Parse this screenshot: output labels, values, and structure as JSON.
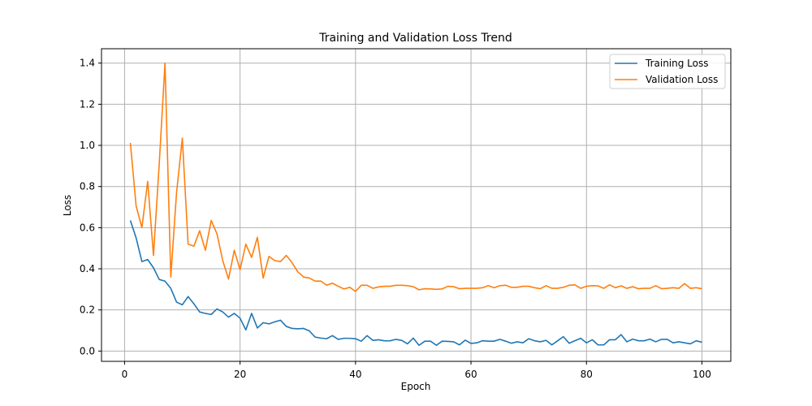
{
  "chart_data": {
    "type": "line",
    "title": "Training and Validation Loss Trend",
    "xlabel": "Epoch",
    "ylabel": "Loss",
    "xlim": [
      -4,
      105
    ],
    "ylim": [
      -0.05,
      1.47
    ],
    "xticks": [
      0,
      20,
      40,
      60,
      80,
      100
    ],
    "yticks": [
      0.0,
      0.2,
      0.4,
      0.6,
      0.8,
      1.0,
      1.2,
      1.4
    ],
    "xtick_labels": [
      "0",
      "20",
      "40",
      "60",
      "80",
      "100"
    ],
    "ytick_labels": [
      "0.0",
      "0.2",
      "0.4",
      "0.6",
      "0.8",
      "1.0",
      "1.2",
      "1.4"
    ],
    "grid": true,
    "legend_position": "top-right",
    "series": [
      {
        "name": "Training Loss",
        "color": "#1f77b4",
        "values": [
          0.635,
          0.55,
          0.435,
          0.445,
          0.405,
          0.348,
          0.34,
          0.305,
          0.238,
          0.225,
          0.265,
          0.23,
          0.19,
          0.183,
          0.178,
          0.205,
          0.19,
          0.165,
          0.183,
          0.16,
          0.103,
          0.183,
          0.112,
          0.138,
          0.132,
          0.142,
          0.15,
          0.12,
          0.11,
          0.108,
          0.11,
          0.098,
          0.068,
          0.063,
          0.06,
          0.075,
          0.057,
          0.062,
          0.062,
          0.06,
          0.048,
          0.075,
          0.052,
          0.055,
          0.05,
          0.05,
          0.057,
          0.052,
          0.035,
          0.063,
          0.028,
          0.048,
          0.048,
          0.028,
          0.048,
          0.047,
          0.045,
          0.03,
          0.053,
          0.037,
          0.04,
          0.05,
          0.048,
          0.048,
          0.057,
          0.048,
          0.038,
          0.045,
          0.04,
          0.06,
          0.05,
          0.045,
          0.052,
          0.03,
          0.05,
          0.07,
          0.038,
          0.05,
          0.062,
          0.04,
          0.055,
          0.03,
          0.03,
          0.055,
          0.055,
          0.08,
          0.045,
          0.058,
          0.05,
          0.05,
          0.058,
          0.045,
          0.057,
          0.057,
          0.04,
          0.045,
          0.04,
          0.035,
          0.05,
          0.043
        ]
      },
      {
        "name": "Validation Loss",
        "color": "#ff7f0e",
        "values": [
          1.012,
          0.705,
          0.6,
          0.825,
          0.465,
          0.91,
          1.4,
          0.36,
          0.77,
          1.035,
          0.52,
          0.51,
          0.585,
          0.49,
          0.635,
          0.57,
          0.44,
          0.35,
          0.49,
          0.395,
          0.52,
          0.455,
          0.553,
          0.355,
          0.46,
          0.44,
          0.435,
          0.465,
          0.43,
          0.385,
          0.36,
          0.355,
          0.34,
          0.34,
          0.32,
          0.33,
          0.315,
          0.302,
          0.31,
          0.29,
          0.32,
          0.32,
          0.305,
          0.312,
          0.315,
          0.315,
          0.32,
          0.32,
          0.318,
          0.313,
          0.298,
          0.303,
          0.302,
          0.3,
          0.302,
          0.315,
          0.313,
          0.303,
          0.305,
          0.305,
          0.305,
          0.308,
          0.318,
          0.308,
          0.318,
          0.32,
          0.31,
          0.31,
          0.315,
          0.315,
          0.308,
          0.303,
          0.318,
          0.305,
          0.305,
          0.31,
          0.32,
          0.322,
          0.305,
          0.315,
          0.318,
          0.317,
          0.305,
          0.322,
          0.308,
          0.317,
          0.305,
          0.313,
          0.303,
          0.305,
          0.305,
          0.318,
          0.303,
          0.305,
          0.308,
          0.305,
          0.328,
          0.305,
          0.308,
          0.303
        ]
      }
    ]
  }
}
